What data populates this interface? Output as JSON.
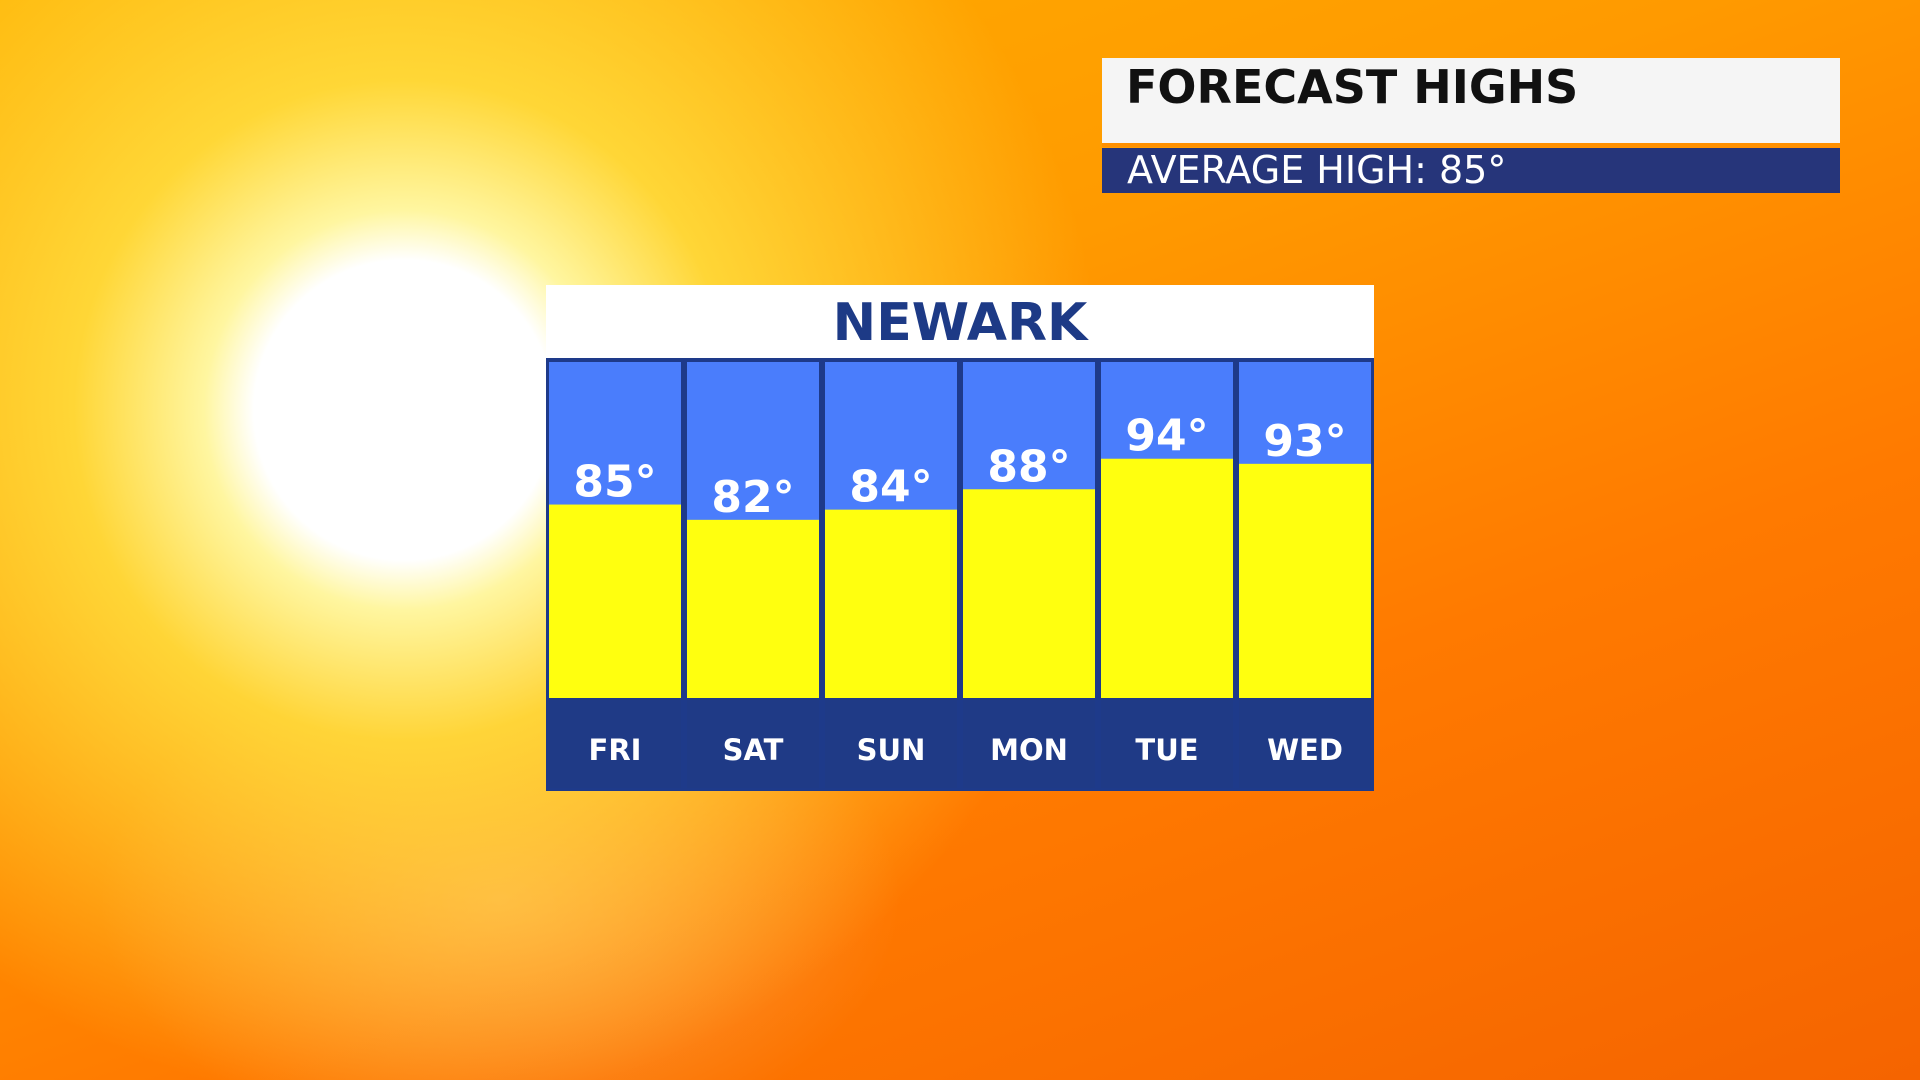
{
  "chart_data": {
    "type": "bar",
    "title": "FORECAST HIGHS",
    "subtitle": "AVERAGE HIGH:  85°",
    "location": "NEWARK",
    "categories": [
      "FRI",
      "SAT",
      "SUN",
      "MON",
      "TUE",
      "WED"
    ],
    "values": [
      85,
      82,
      84,
      88,
      94,
      93
    ],
    "value_labels": [
      "85°",
      "82°",
      "84°",
      "88°",
      "94°",
      "93°"
    ],
    "color": "#ffff0f",
    "ylim": [
      47,
      113
    ]
  }
}
